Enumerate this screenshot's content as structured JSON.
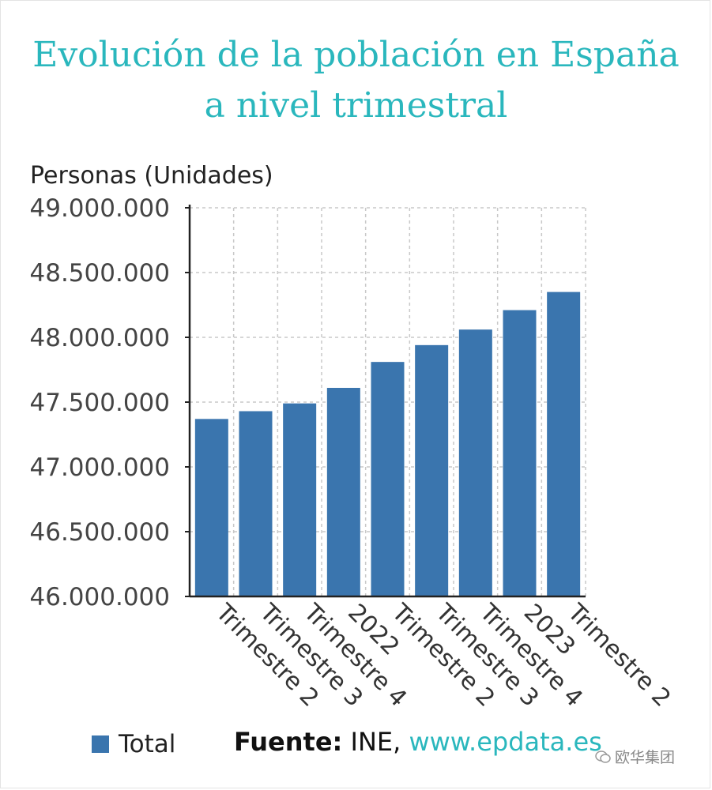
{
  "title_line1": "Evolución de la población en España",
  "title_line2": "a nivel trimestral",
  "chart_data": {
    "type": "bar",
    "ylabel": "Personas (Unidades)",
    "ylim": [
      46000000,
      49000000
    ],
    "y_ticks": [
      46000000,
      46500000,
      47000000,
      47500000,
      48000000,
      48500000,
      49000000
    ],
    "y_tick_labels": [
      "46.000.000",
      "46.500.000",
      "47.000.000",
      "47.500.000",
      "48.000.000",
      "48.500.000",
      "49.000.000"
    ],
    "categories": [
      "Trimestre 2",
      "Trimestre 3",
      "Trimestre 4",
      "2022",
      "Trimestre 2",
      "Trimestre 3",
      "Trimestre 4",
      "2023",
      "Trimestre 2"
    ],
    "series": [
      {
        "name": "Total",
        "values": [
          47370000,
          47430000,
          47490000,
          47610000,
          47810000,
          47940000,
          48060000,
          48210000,
          48350000
        ]
      }
    ],
    "grid": true,
    "legend_position": "bottom-left"
  },
  "colors": {
    "bar": "#3a75ae",
    "title": "#2ab7bd",
    "url": "#2ab7bd",
    "grid": "#c8c8c8"
  },
  "legend_label": "Total",
  "source_label": "Fuente:",
  "source_name": " INE, ",
  "source_url": "www.epdata.es",
  "watermark_text": "欧华集团"
}
